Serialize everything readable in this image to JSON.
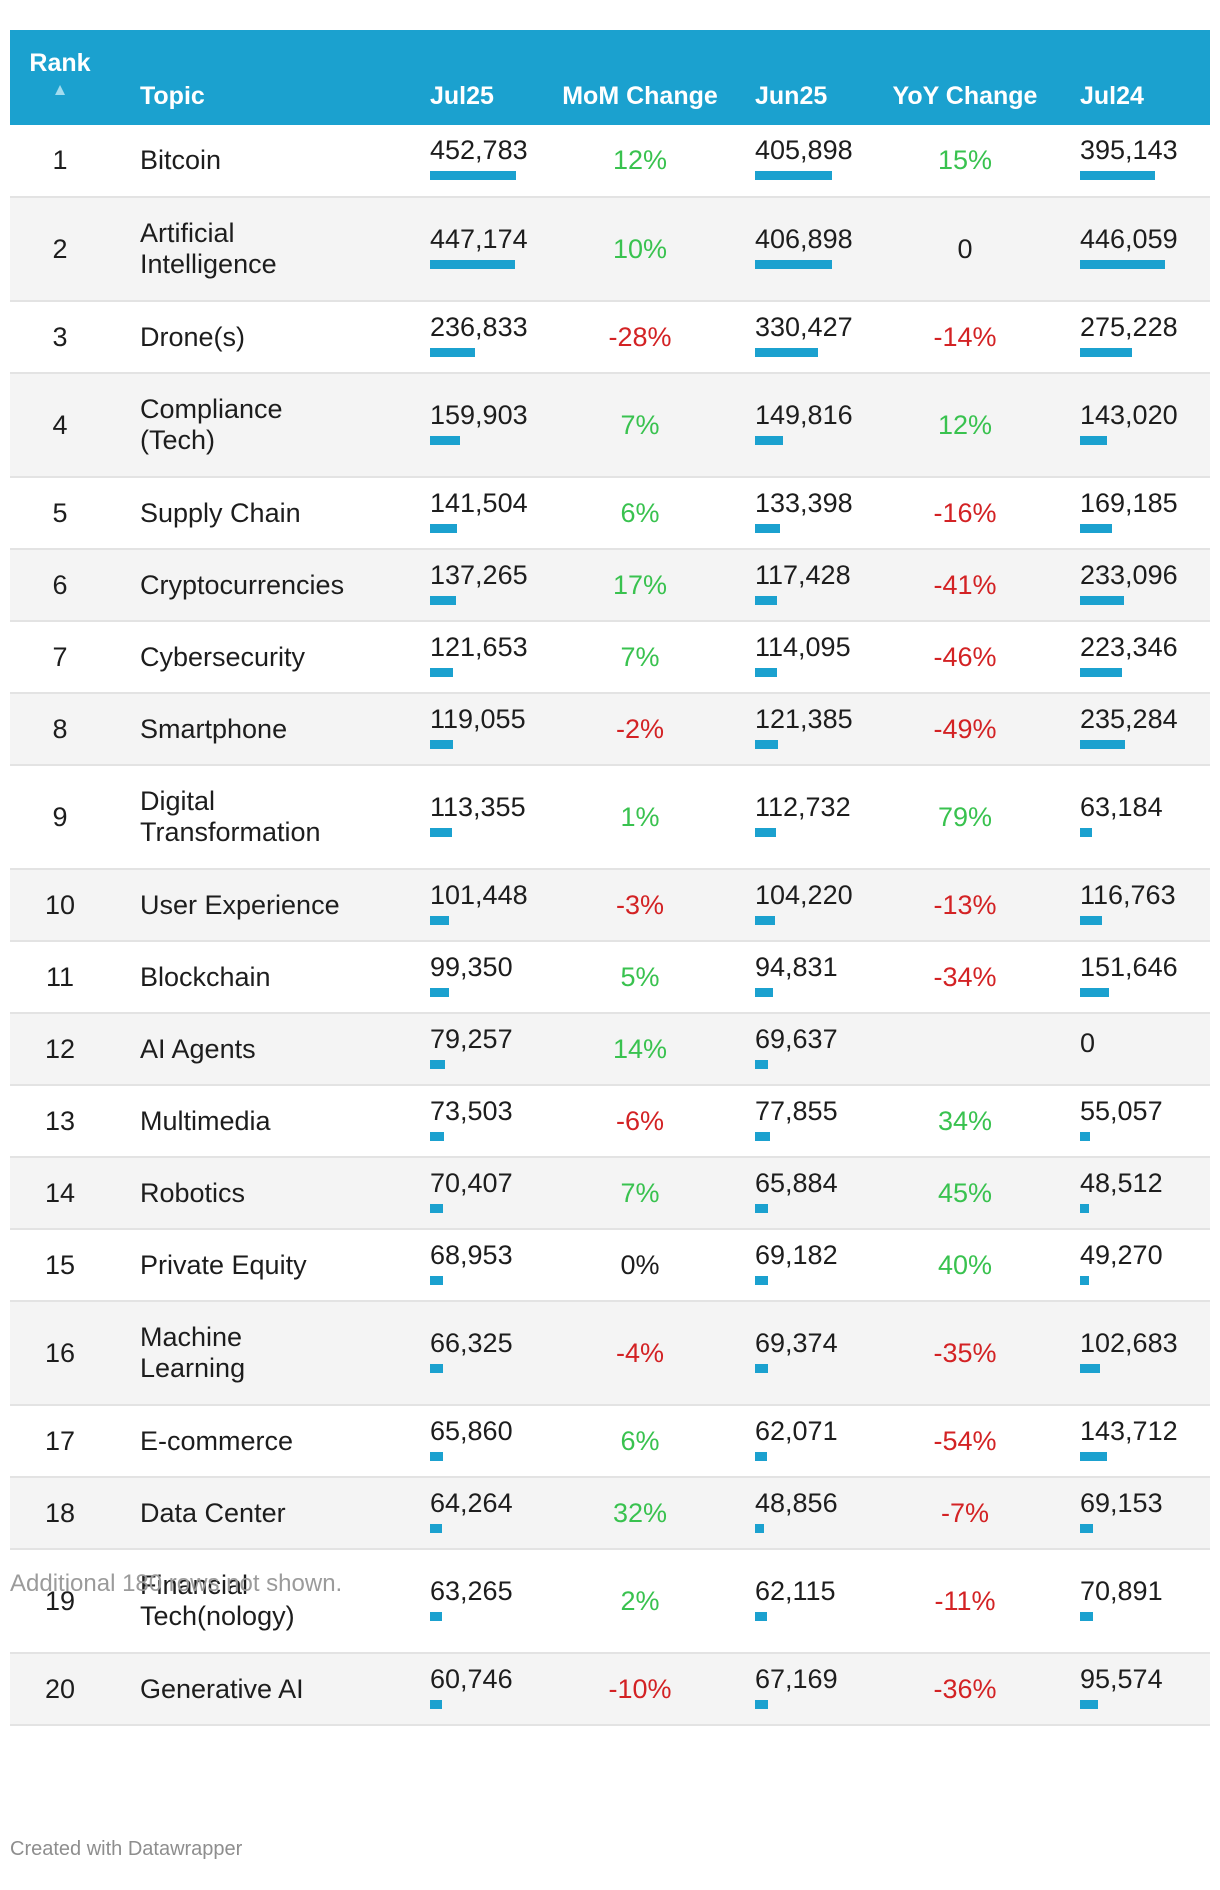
{
  "chart_data": {
    "type": "table",
    "columns": {
      "rank": "Rank",
      "topic": "Topic",
      "jul25": "Jul25",
      "mom": "MoM Change",
      "jun25": "Jun25",
      "yoy": "YoY Change",
      "jul24": "Jul24"
    },
    "sort_indicator": "▲",
    "colors": {
      "header": "#1ba1cf",
      "bar": "#1ba1cf",
      "positive": "#39c24f",
      "negative": "#d32224"
    },
    "bar_max": 452783,
    "rows": [
      {
        "rank": "1",
        "topic": "Bitcoin",
        "jul25": "452,783",
        "jul25_v": 452783,
        "mom": "12%",
        "jun25": "405,898",
        "jun25_v": 405898,
        "yoy": "15%",
        "jul24": "395,143",
        "jul24_v": 395143
      },
      {
        "rank": "2",
        "topic": "Artificial Intelligence",
        "jul25": "447,174",
        "jul25_v": 447174,
        "mom": "10%",
        "jun25": "406,898",
        "jun25_v": 406898,
        "yoy": "0",
        "jul24": "446,059",
        "jul24_v": 446059
      },
      {
        "rank": "3",
        "topic": "Drone(s)",
        "jul25": "236,833",
        "jul25_v": 236833,
        "mom": "-28%",
        "jun25": "330,427",
        "jun25_v": 330427,
        "yoy": "-14%",
        "jul24": "275,228",
        "jul24_v": 275228
      },
      {
        "rank": "4",
        "topic": "Compliance (Tech)",
        "jul25": "159,903",
        "jul25_v": 159903,
        "mom": "7%",
        "jun25": "149,816",
        "jun25_v": 149816,
        "yoy": "12%",
        "jul24": "143,020",
        "jul24_v": 143020
      },
      {
        "rank": "5",
        "topic": "Supply Chain",
        "jul25": "141,504",
        "jul25_v": 141504,
        "mom": "6%",
        "jun25": "133,398",
        "jun25_v": 133398,
        "yoy": "-16%",
        "jul24": "169,185",
        "jul24_v": 169185
      },
      {
        "rank": "6",
        "topic": "Cryptocurrencies",
        "jul25": "137,265",
        "jul25_v": 137265,
        "mom": "17%",
        "jun25": "117,428",
        "jun25_v": 117428,
        "yoy": "-41%",
        "jul24": "233,096",
        "jul24_v": 233096
      },
      {
        "rank": "7",
        "topic": "Cybersecurity",
        "jul25": "121,653",
        "jul25_v": 121653,
        "mom": "7%",
        "jun25": "114,095",
        "jun25_v": 114095,
        "yoy": "-46%",
        "jul24": "223,346",
        "jul24_v": 223346
      },
      {
        "rank": "8",
        "topic": "Smartphone",
        "jul25": "119,055",
        "jul25_v": 119055,
        "mom": "-2%",
        "jun25": "121,385",
        "jun25_v": 121385,
        "yoy": "-49%",
        "jul24": "235,284",
        "jul24_v": 235284
      },
      {
        "rank": "9",
        "topic": "Digital Transformation",
        "jul25": "113,355",
        "jul25_v": 113355,
        "mom": "1%",
        "jun25": "112,732",
        "jun25_v": 112732,
        "yoy": "79%",
        "jul24": "63,184",
        "jul24_v": 63184
      },
      {
        "rank": "10",
        "topic": "User Experience",
        "jul25": "101,448",
        "jul25_v": 101448,
        "mom": "-3%",
        "jun25": "104,220",
        "jun25_v": 104220,
        "yoy": "-13%",
        "jul24": "116,763",
        "jul24_v": 116763
      },
      {
        "rank": "11",
        "topic": "Blockchain",
        "jul25": "99,350",
        "jul25_v": 99350,
        "mom": "5%",
        "jun25": "94,831",
        "jun25_v": 94831,
        "yoy": "-34%",
        "jul24": "151,646",
        "jul24_v": 151646
      },
      {
        "rank": "12",
        "topic": "AI Agents",
        "jul25": "79,257",
        "jul25_v": 79257,
        "mom": "14%",
        "jun25": "69,637",
        "jun25_v": 69637,
        "yoy": "",
        "jul24": "0",
        "jul24_v": 0
      },
      {
        "rank": "13",
        "topic": "Multimedia",
        "jul25": "73,503",
        "jul25_v": 73503,
        "mom": "-6%",
        "jun25": "77,855",
        "jun25_v": 77855,
        "yoy": "34%",
        "jul24": "55,057",
        "jul24_v": 55057
      },
      {
        "rank": "14",
        "topic": "Robotics",
        "jul25": "70,407",
        "jul25_v": 70407,
        "mom": "7%",
        "jun25": "65,884",
        "jun25_v": 65884,
        "yoy": "45%",
        "jul24": "48,512",
        "jul24_v": 48512
      },
      {
        "rank": "15",
        "topic": "Private Equity",
        "jul25": "68,953",
        "jul25_v": 68953,
        "mom": "0%",
        "jun25": "69,182",
        "jun25_v": 69182,
        "yoy": "40%",
        "jul24": "49,270",
        "jul24_v": 49270
      },
      {
        "rank": "16",
        "topic": "Machine Learning",
        "jul25": "66,325",
        "jul25_v": 66325,
        "mom": "-4%",
        "jun25": "69,374",
        "jun25_v": 69374,
        "yoy": "-35%",
        "jul24": "102,683",
        "jul24_v": 102683
      },
      {
        "rank": "17",
        "topic": "E-commerce",
        "jul25": "65,860",
        "jul25_v": 65860,
        "mom": "6%",
        "jun25": "62,071",
        "jun25_v": 62071,
        "yoy": "-54%",
        "jul24": "143,712",
        "jul24_v": 143712
      },
      {
        "rank": "18",
        "topic": "Data Center",
        "jul25": "64,264",
        "jul25_v": 64264,
        "mom": "32%",
        "jun25": "48,856",
        "jun25_v": 48856,
        "yoy": "-7%",
        "jul24": "69,153",
        "jul24_v": 69153
      },
      {
        "rank": "19",
        "topic": "Financial Tech(nology)",
        "jul25": "63,265",
        "jul25_v": 63265,
        "mom": "2%",
        "jun25": "62,115",
        "jun25_v": 62115,
        "yoy": "-11%",
        "jul24": "70,891",
        "jul24_v": 70891
      },
      {
        "rank": "20",
        "topic": "Generative AI",
        "jul25": "60,746",
        "jul25_v": 60746,
        "mom": "-10%",
        "jun25": "67,169",
        "jun25_v": 67169,
        "yoy": "-36%",
        "jul24": "95,574",
        "jul24_v": 95574
      }
    ]
  },
  "footer": {
    "note": "Additional 180 rows not shown.",
    "credit": "Created with Datawrapper"
  }
}
